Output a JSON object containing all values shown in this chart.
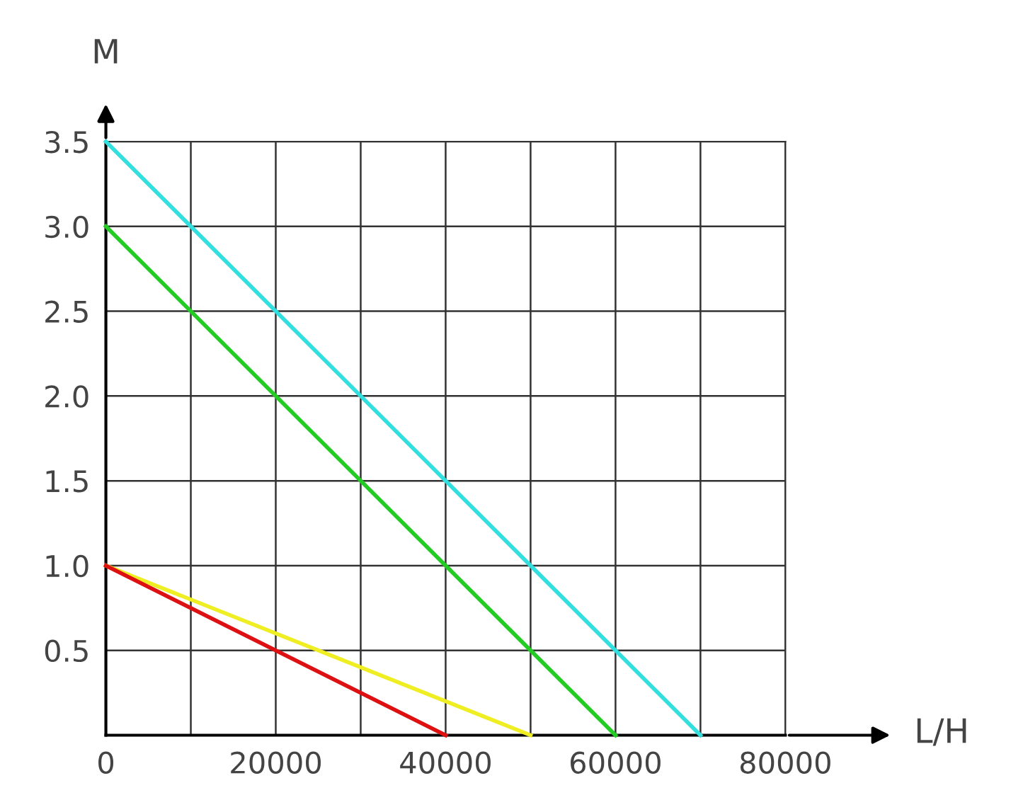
{
  "chart_data": {
    "type": "line",
    "xlabel": "L/H",
    "ylabel": "M",
    "series": [
      {
        "color": "#33dede",
        "x": [
          0,
          70000
        ],
        "values": [
          3.5,
          0
        ]
      },
      {
        "color": "#22cc22",
        "x": [
          0,
          60000
        ],
        "values": [
          3.0,
          0
        ]
      },
      {
        "color": "#eeee22",
        "x": [
          0,
          50000
        ],
        "values": [
          1.0,
          0
        ]
      },
      {
        "color": "#dd1111",
        "x": [
          0,
          40000
        ],
        "values": [
          1.0,
          0
        ]
      }
    ],
    "xlim": [
      0,
      80000
    ],
    "ylim": [
      0,
      3.5
    ],
    "xticks": [
      0,
      {
        "value": 10000,
        "label": null
      },
      20000,
      {
        "value": 30000,
        "label": null
      },
      40000,
      {
        "value": 50000,
        "label": null
      },
      60000,
      {
        "value": 70000,
        "label": null
      },
      80000
    ],
    "yticks": [
      {
        "value": 0.5,
        "label": "0.5"
      },
      {
        "value": 1.0,
        "label": "1.0"
      },
      {
        "value": 1.5,
        "label": "1.5"
      },
      {
        "value": 2.0,
        "label": "2.0"
      },
      {
        "value": 2.5,
        "label": "2.5"
      },
      {
        "value": 3.0,
        "label": "3.0"
      },
      {
        "value": 3.5,
        "label": "3.5"
      }
    ],
    "grid": true,
    "legend": false,
    "marker": "none",
    "line_style": "solid"
  }
}
